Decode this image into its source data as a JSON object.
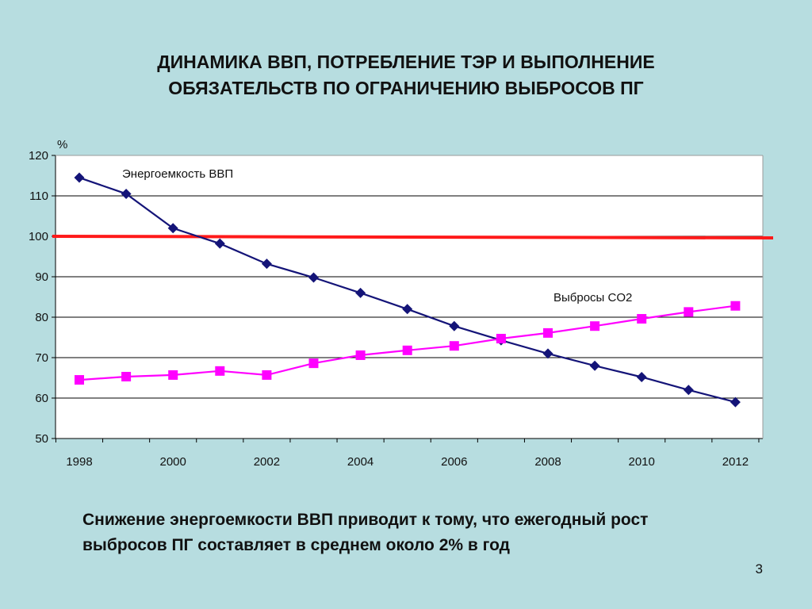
{
  "slide": {
    "title_line1": "ДИНАМИКА ВВП, ПОТРЕБЛЕНИЕ ТЭР И ВЫПОЛНЕНИЕ",
    "title_line2": "ОБЯЗАТЕЛЬСТВ ПО ОГРАНИЧЕНИЮ ВЫБРОСОВ ПГ",
    "conclusion_line1": "Снижение энергоемкости ВВП приводит к тому, что ежегодный рост",
    "conclusion_line2": "выбросов ПГ составляет в среднем около 2% в год",
    "page_number": "3"
  },
  "chart_data": {
    "type": "line",
    "ylabel": "%",
    "xlabel": "",
    "ylim": [
      50,
      120
    ],
    "yticks": [
      50,
      60,
      70,
      80,
      90,
      100,
      110,
      120
    ],
    "x": [
      1998,
      1999,
      2000,
      2001,
      2002,
      2003,
      2004,
      2005,
      2006,
      2007,
      2008,
      2009,
      2010,
      2011,
      2012
    ],
    "xtick_labels": [
      "1998",
      "2000",
      "2002",
      "2004",
      "2006",
      "2008",
      "2010",
      "2012"
    ],
    "grid": "horizontal",
    "reference_line": {
      "y": 100,
      "color": "#ff1a1a"
    },
    "series": [
      {
        "name": "Энергоемкость ВВП",
        "color": "#141478",
        "marker": "diamond",
        "values": [
          114.5,
          110.5,
          102,
          98.2,
          93.2,
          89.8,
          86,
          82,
          77.8,
          74.3,
          71,
          68,
          65.2,
          62,
          59
        ]
      },
      {
        "name": "Выбросы CO2",
        "color": "#ff00ff",
        "marker": "square",
        "values": [
          64.5,
          65.3,
          65.7,
          66.7,
          65.7,
          68.6,
          70.6,
          71.8,
          72.9,
          74.7,
          76.1,
          77.8,
          79.6,
          81.3,
          82.8
        ]
      }
    ]
  }
}
